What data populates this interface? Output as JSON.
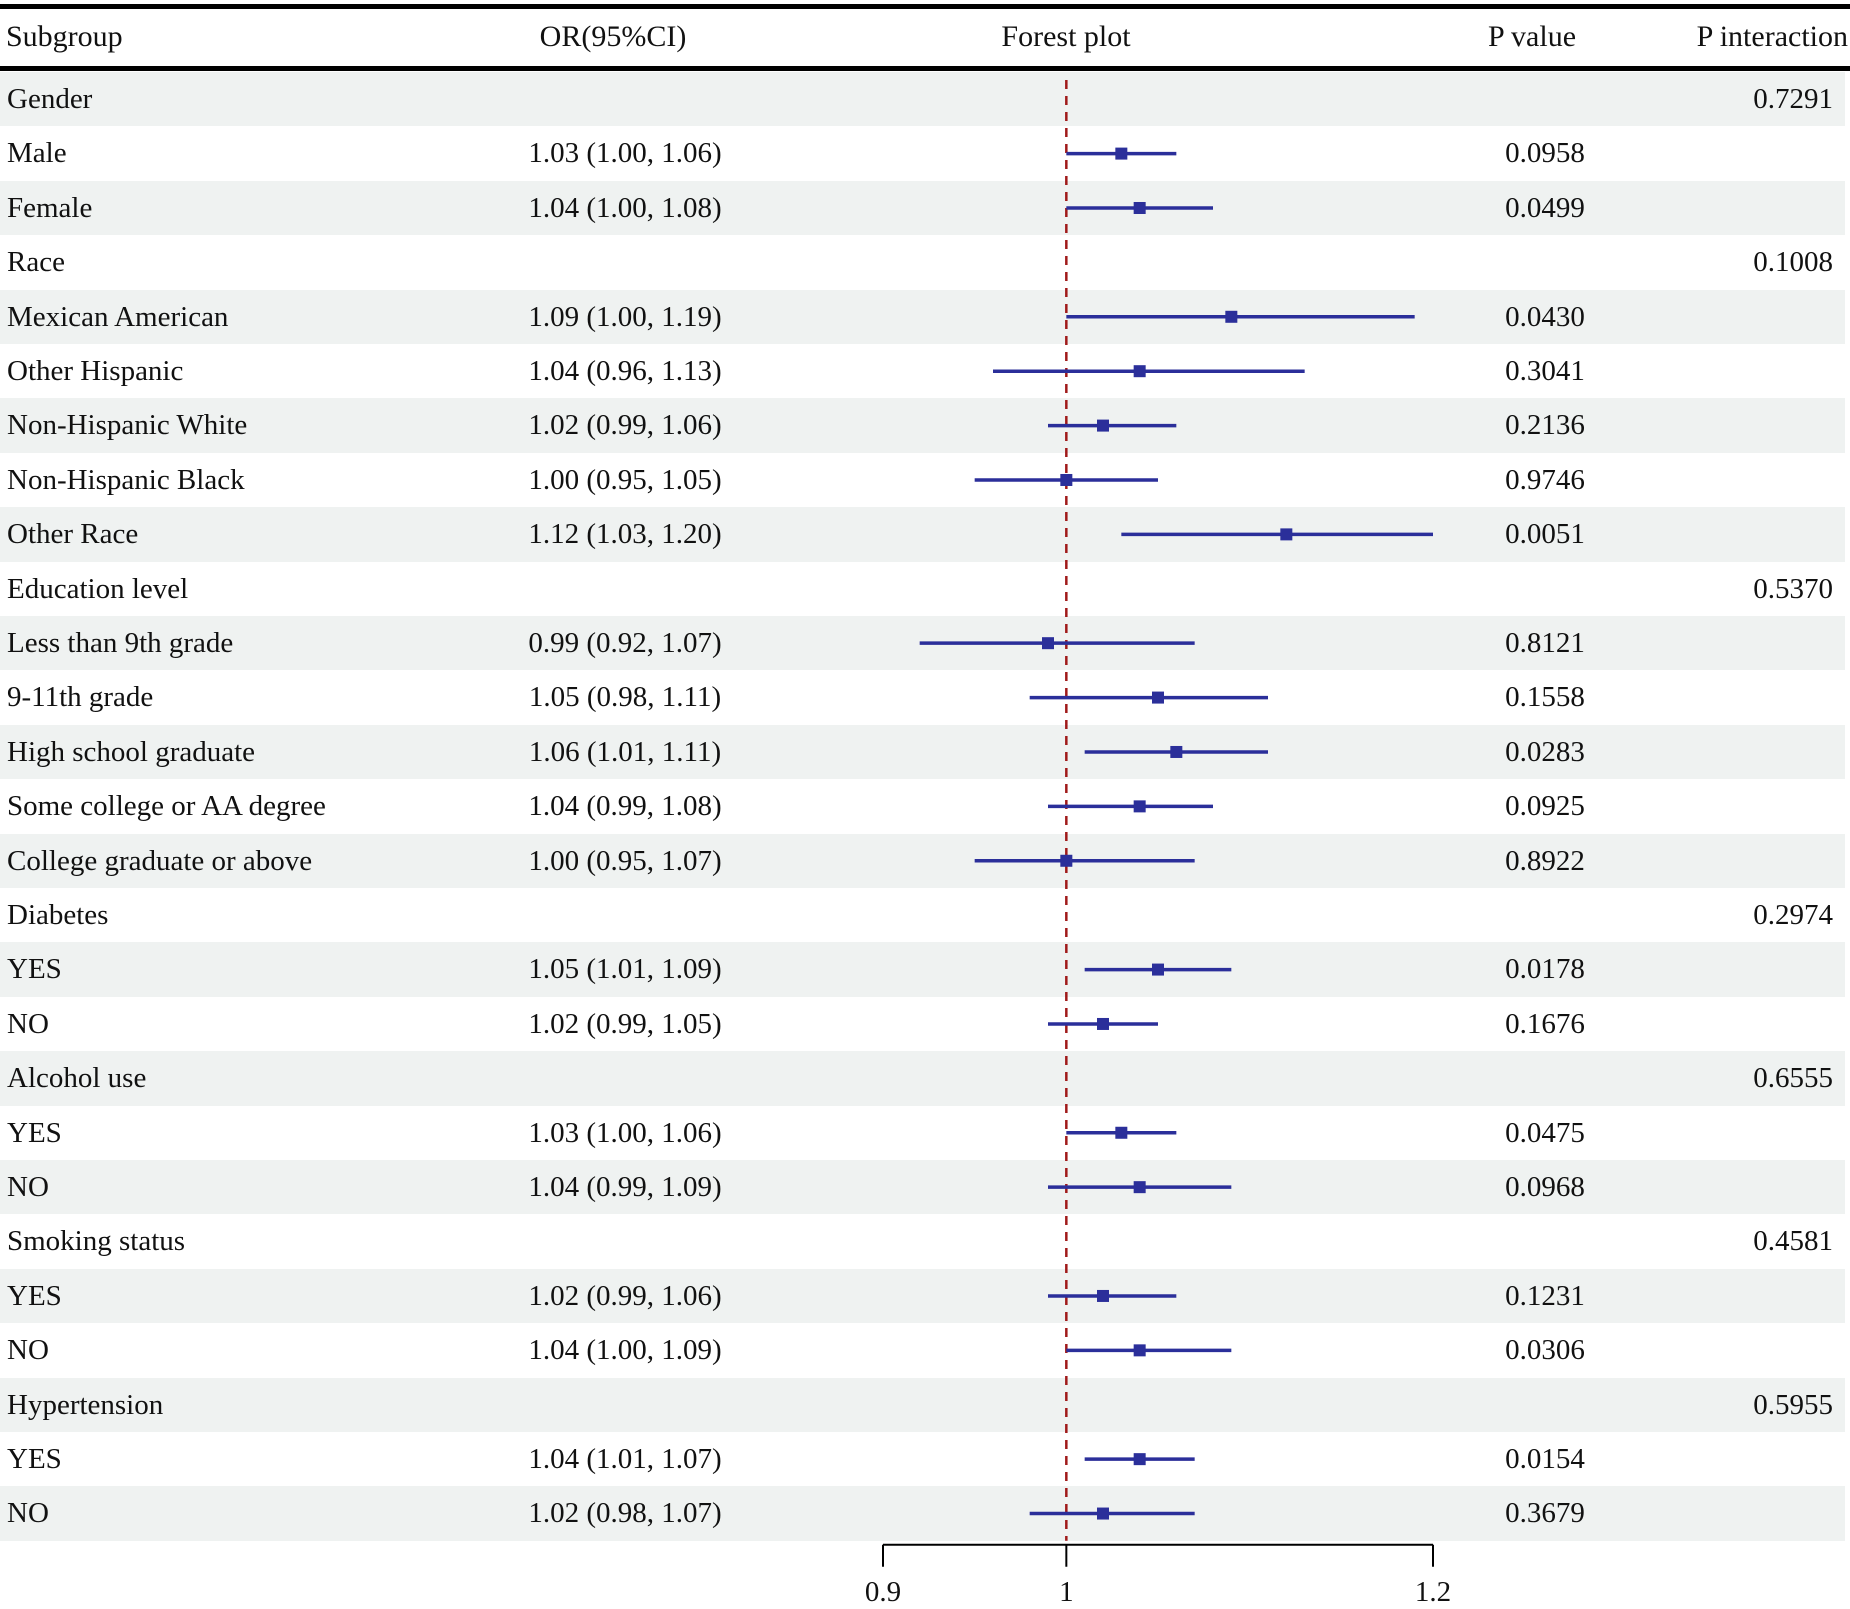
{
  "header": {
    "subgroup": "Subgroup",
    "or": "OR(95%CI)",
    "forest": "Forest plot",
    "p": "P value",
    "p_interaction": "P interaction"
  },
  "colors": {
    "ci_line": "#2b2f9a",
    "point": "#2b2f9a",
    "ref_line": "#a01a1a",
    "shade": "#eff2f1"
  },
  "chart_data": {
    "type": "forest",
    "title": "Forest plot",
    "xlim": [
      0.9,
      1.2
    ],
    "xticks": [
      "0.9",
      "1",
      "1.2"
    ],
    "reference": 1,
    "rows": [
      {
        "label": "Gender",
        "p_interaction": "0.7291"
      },
      {
        "label": "Male",
        "or_text": "1.03 (1.00, 1.06)",
        "or": 1.03,
        "lo": 1.0,
        "hi": 1.06,
        "p": "0.0958"
      },
      {
        "label": "Female",
        "or_text": "1.04 (1.00, 1.08)",
        "or": 1.04,
        "lo": 1.0,
        "hi": 1.08,
        "p": "0.0499"
      },
      {
        "label": "Race",
        "p_interaction": "0.1008"
      },
      {
        "label": "Mexican American",
        "or_text": "1.09 (1.00, 1.19)",
        "or": 1.09,
        "lo": 1.0,
        "hi": 1.19,
        "p": "0.0430"
      },
      {
        "label": "Other Hispanic",
        "or_text": "1.04 (0.96, 1.13)",
        "or": 1.04,
        "lo": 0.96,
        "hi": 1.13,
        "p": "0.3041"
      },
      {
        "label": "Non-Hispanic White",
        "or_text": "1.02 (0.99, 1.06)",
        "or": 1.02,
        "lo": 0.99,
        "hi": 1.06,
        "p": "0.2136"
      },
      {
        "label": "Non-Hispanic Black",
        "or_text": "1.00 (0.95, 1.05)",
        "or": 1.0,
        "lo": 0.95,
        "hi": 1.05,
        "p": "0.9746"
      },
      {
        "label": "Other Race",
        "or_text": "1.12 (1.03, 1.20)",
        "or": 1.12,
        "lo": 1.03,
        "hi": 1.2,
        "p": "0.0051"
      },
      {
        "label": "Education level",
        "p_interaction": "0.5370"
      },
      {
        "label": "Less than 9th grade",
        "or_text": "0.99 (0.92, 1.07)",
        "or": 0.99,
        "lo": 0.92,
        "hi": 1.07,
        "p": "0.8121"
      },
      {
        "label": "9-11th grade",
        "or_text": "1.05 (0.98, 1.11)",
        "or": 1.05,
        "lo": 0.98,
        "hi": 1.11,
        "p": "0.1558"
      },
      {
        "label": "High school graduate",
        "or_text": "1.06 (1.01, 1.11)",
        "or": 1.06,
        "lo": 1.01,
        "hi": 1.11,
        "p": "0.0283"
      },
      {
        "label": "Some college or AA degree",
        "or_text": "1.04 (0.99, 1.08)",
        "or": 1.04,
        "lo": 0.99,
        "hi": 1.08,
        "p": "0.0925"
      },
      {
        "label": "College graduate or above",
        "or_text": "1.00 (0.95, 1.07)",
        "or": 1.0,
        "lo": 0.95,
        "hi": 1.07,
        "p": "0.8922"
      },
      {
        "label": "Diabetes",
        "p_interaction": "0.2974"
      },
      {
        "label": "YES",
        "or_text": "1.05 (1.01, 1.09)",
        "or": 1.05,
        "lo": 1.01,
        "hi": 1.09,
        "p": "0.0178"
      },
      {
        "label": "NO",
        "or_text": "1.02 (0.99, 1.05)",
        "or": 1.02,
        "lo": 0.99,
        "hi": 1.05,
        "p": "0.1676"
      },
      {
        "label": "Alcohol use",
        "p_interaction": "0.6555"
      },
      {
        "label": "YES",
        "or_text": "1.03 (1.00, 1.06)",
        "or": 1.03,
        "lo": 1.0,
        "hi": 1.06,
        "p": "0.0475"
      },
      {
        "label": "NO",
        "or_text": "1.04 (0.99, 1.09)",
        "or": 1.04,
        "lo": 0.99,
        "hi": 1.09,
        "p": "0.0968"
      },
      {
        "label": "Smoking status",
        "p_interaction": "0.4581"
      },
      {
        "label": "YES",
        "or_text": "1.02 (0.99, 1.06)",
        "or": 1.02,
        "lo": 0.99,
        "hi": 1.06,
        "p": "0.1231"
      },
      {
        "label": "NO",
        "or_text": "1.04 (1.00, 1.09)",
        "or": 1.04,
        "lo": 1.0,
        "hi": 1.09,
        "p": "0.0306"
      },
      {
        "label": "Hypertension",
        "p_interaction": "0.5955"
      },
      {
        "label": "YES",
        "or_text": "1.04 (1.01, 1.07)",
        "or": 1.04,
        "lo": 1.01,
        "hi": 1.07,
        "p": "0.0154"
      },
      {
        "label": "NO",
        "or_text": "1.02 (0.98, 1.07)",
        "or": 1.02,
        "lo": 0.98,
        "hi": 1.07,
        "p": "0.3679"
      }
    ]
  }
}
